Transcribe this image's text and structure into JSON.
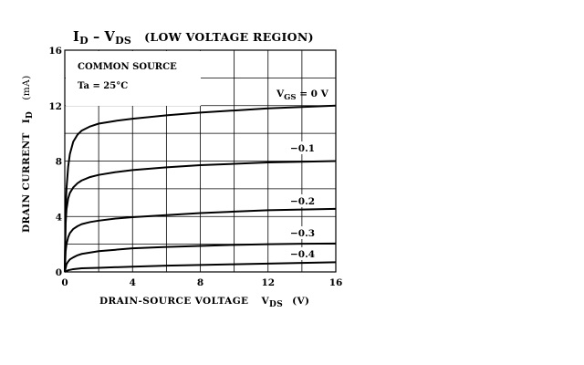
{
  "chart_data": {
    "type": "line",
    "title": {
      "main": "I",
      "main_sub": "D",
      "dash": "–",
      "second": "V",
      "second_sub": "DS",
      "region": "(LOW VOLTAGE REGION)"
    },
    "annotation": {
      "line1": "COMMON SOURCE",
      "line2": "Ta = 25°C"
    },
    "xlabel": {
      "text": "DRAIN-SOURCE VOLTAGE",
      "symbol": "V",
      "symbol_sub": "DS",
      "unit": "(V)"
    },
    "ylabel": {
      "text": "DRAIN CURRENT",
      "symbol": "I",
      "symbol_sub": "D",
      "unit": "(mA)"
    },
    "xlim": [
      0,
      16
    ],
    "ylim": [
      0,
      16
    ],
    "x_major_ticks": [
      0,
      4,
      8,
      12,
      16
    ],
    "y_major_ticks": [
      0,
      4,
      8,
      12,
      16
    ],
    "x_tick_labels": [
      "0",
      "4",
      "8",
      "12",
      "16"
    ],
    "y_tick_labels": [
      "0",
      "4",
      "8",
      "12",
      "16"
    ],
    "x_grid": [
      2,
      4,
      6,
      8,
      10,
      12,
      14
    ],
    "y_grid": [
      2,
      4,
      6,
      8,
      10,
      12,
      14
    ],
    "grid": true,
    "series": [
      {
        "name": "V_GS = 0 V",
        "label_main": "V",
        "label_sub": "GS",
        "label_rest": " = 0 V",
        "x": [
          0,
          0.05,
          0.1,
          0.2,
          0.3,
          0.5,
          0.75,
          1.0,
          1.5,
          2,
          3,
          4,
          6,
          8,
          10,
          12,
          14,
          16
        ],
        "y": [
          0,
          4.5,
          6.0,
          7.6,
          8.5,
          9.4,
          9.9,
          10.2,
          10.5,
          10.7,
          10.9,
          11.05,
          11.3,
          11.5,
          11.65,
          11.8,
          11.9,
          12.0
        ]
      },
      {
        "name": "−0.1",
        "x": [
          0,
          0.05,
          0.1,
          0.2,
          0.3,
          0.5,
          0.75,
          1.0,
          1.5,
          2,
          3,
          4,
          6,
          8,
          10,
          12,
          14,
          16
        ],
        "y": [
          0,
          3.5,
          4.5,
          5.3,
          5.7,
          6.1,
          6.4,
          6.6,
          6.85,
          7.0,
          7.2,
          7.35,
          7.55,
          7.7,
          7.8,
          7.9,
          7.95,
          8.0
        ]
      },
      {
        "name": "−0.2",
        "x": [
          0,
          0.05,
          0.1,
          0.2,
          0.3,
          0.5,
          0.75,
          1.0,
          1.5,
          2,
          3,
          4,
          6,
          8,
          10,
          12,
          14,
          16
        ],
        "y": [
          0,
          1.5,
          2.0,
          2.5,
          2.8,
          3.1,
          3.3,
          3.45,
          3.6,
          3.7,
          3.85,
          3.95,
          4.1,
          4.25,
          4.35,
          4.45,
          4.5,
          4.55
        ]
      },
      {
        "name": "−0.3",
        "x": [
          0,
          0.1,
          0.2,
          0.3,
          0.5,
          0.75,
          1.0,
          1.5,
          2,
          3,
          4,
          6,
          8,
          10,
          12,
          14,
          16
        ],
        "y": [
          0,
          0.55,
          0.75,
          0.9,
          1.05,
          1.2,
          1.3,
          1.4,
          1.5,
          1.6,
          1.7,
          1.8,
          1.88,
          1.95,
          2.0,
          2.03,
          2.05
        ]
      },
      {
        "name": "−0.4",
        "x": [
          0,
          0.2,
          0.5,
          1.0,
          2,
          4,
          6,
          8,
          10,
          12,
          14,
          16
        ],
        "y": [
          0,
          0.12,
          0.2,
          0.26,
          0.3,
          0.38,
          0.45,
          0.5,
          0.55,
          0.6,
          0.65,
          0.7
        ]
      }
    ]
  }
}
